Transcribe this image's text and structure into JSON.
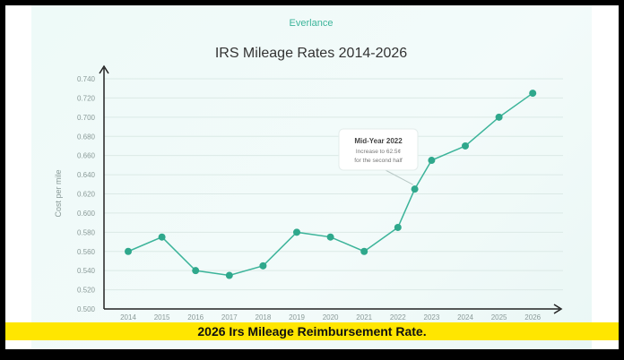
{
  "logo": {
    "text": "Everlance"
  },
  "caption": "2026 Irs Mileage Reimbursement Rate.",
  "colors": {
    "line": "#3cb49a",
    "point": "#2fa88c",
    "caption_bg": "#ffe600"
  },
  "chart_data": {
    "type": "line",
    "title": "IRS Mileage Rates 2014-2026",
    "ylabel": "Cost per mile",
    "xlabel": "",
    "ylim": [
      0.5,
      0.74
    ],
    "yticks": [
      "0.500",
      "0.520",
      "0.540",
      "0.560",
      "0.580",
      "0.600",
      "0.620",
      "0.640",
      "0.660",
      "0.680",
      "0.700",
      "0.720",
      "0.740"
    ],
    "xticks": [
      "2014",
      "2015",
      "2016",
      "2017",
      "2018",
      "2019",
      "2020",
      "2021",
      "2022",
      "2023",
      "2024",
      "2025",
      "2026"
    ],
    "grid": true,
    "x": [
      2014,
      2015,
      2016,
      2017,
      2018,
      2019,
      2020,
      2021,
      2022,
      2022.5,
      2023,
      2024,
      2025,
      2026
    ],
    "values": [
      0.56,
      0.575,
      0.54,
      0.535,
      0.545,
      0.58,
      0.575,
      0.56,
      0.585,
      0.625,
      0.655,
      0.67,
      0.7,
      0.725
    ],
    "annotation": {
      "title": "Mid-Year 2022",
      "lines": [
        "Increase to 62.5¢",
        "for the second half"
      ],
      "x": 2022.5
    }
  }
}
